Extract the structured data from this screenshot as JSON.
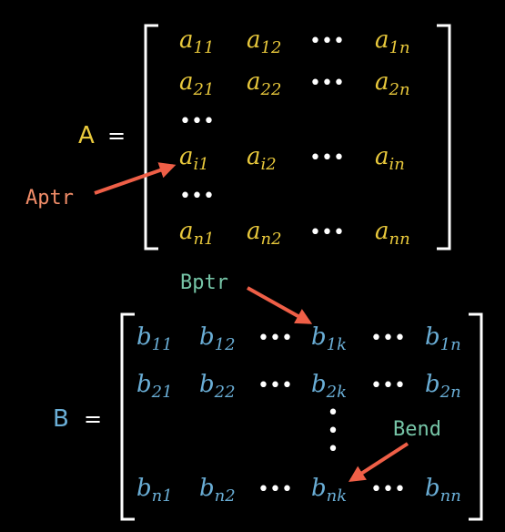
{
  "colors": {
    "background": "#000000",
    "matrix_a": "#e9c93c",
    "matrix_b": "#6aaed6",
    "aptr": "#f08c68",
    "pointer_b": "#76c5a7",
    "arrow": "#ef5f47",
    "dots": "#ffffff",
    "bracket": "#ffffff"
  },
  "matrix_a": {
    "name": "A",
    "equals": "=",
    "dots": "•••",
    "rows": [
      [
        {
          "b": "a",
          "s": "11"
        },
        {
          "b": "a",
          "s": "12"
        },
        {
          "dots": true
        },
        {
          "b": "a",
          "s": "1n"
        }
      ],
      [
        {
          "b": "a",
          "s": "21"
        },
        {
          "b": "a",
          "s": "22"
        },
        {
          "dots": true
        },
        {
          "b": "a",
          "s": "2n"
        }
      ],
      [
        {
          "dots": true
        }
      ],
      [
        {
          "b": "a",
          "s": "i1"
        },
        {
          "b": "a",
          "s": "i2"
        },
        {
          "dots": true
        },
        {
          "b": "a",
          "s": "in"
        }
      ],
      [
        {
          "dots": true
        }
      ],
      [
        {
          "b": "a",
          "s": "n1"
        },
        {
          "b": "a",
          "s": "n2"
        },
        {
          "dots": true
        },
        {
          "b": "a",
          "s": "nn"
        }
      ]
    ]
  },
  "matrix_b": {
    "name": "B",
    "equals": "=",
    "dots": "•••",
    "rows": [
      [
        {
          "b": "b",
          "s": "11"
        },
        {
          "b": "b",
          "s": "12"
        },
        {
          "dots": true
        },
        {
          "b": "b",
          "s": "1k"
        },
        {
          "dots": true
        },
        {
          "b": "b",
          "s": "1n"
        }
      ],
      [
        {
          "b": "b",
          "s": "21"
        },
        {
          "b": "b",
          "s": "22"
        },
        {
          "dots": true
        },
        {
          "b": "b",
          "s": "2k"
        },
        {
          "dots": true
        },
        {
          "b": "b",
          "s": "2n"
        }
      ],
      [
        {
          "vdots": true
        }
      ],
      [
        {
          "b": "b",
          "s": "n1"
        },
        {
          "b": "b",
          "s": "n2"
        },
        {
          "dots": true
        },
        {
          "b": "b",
          "s": "nk"
        },
        {
          "dots": true
        },
        {
          "b": "b",
          "s": "nn"
        }
      ]
    ]
  },
  "pointers": {
    "aptr": "Aptr",
    "bptr": "Bptr",
    "bend": "Bend"
  }
}
